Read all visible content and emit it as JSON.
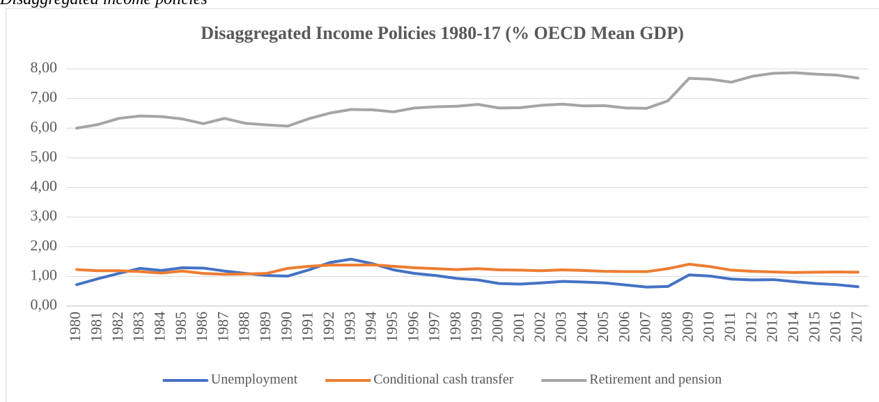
{
  "caption": "Disaggregated income policies",
  "chart_data": {
    "type": "line",
    "title": "Disaggregated Income Policies 1980-17 (% OECD Mean GDP)",
    "categories": [
      "1980",
      "1981",
      "1982",
      "1983",
      "1984",
      "1985",
      "1986",
      "1987",
      "1988",
      "1989",
      "1990",
      "1991",
      "1992",
      "1993",
      "1994",
      "1995",
      "1996",
      "1997",
      "1998",
      "1999",
      "2000",
      "2001",
      "2002",
      "2003",
      "2004",
      "2005",
      "2006",
      "2007",
      "2008",
      "2009",
      "2010",
      "2011",
      "2012",
      "2013",
      "2014",
      "2015",
      "2016",
      "2017"
    ],
    "series": [
      {
        "name": "Unemployment",
        "color": "#4472c4",
        "values": [
          0.72,
          0.92,
          1.1,
          1.27,
          1.2,
          1.29,
          1.28,
          1.18,
          1.1,
          1.03,
          1.01,
          1.22,
          1.47,
          1.58,
          1.43,
          1.22,
          1.1,
          1.03,
          0.93,
          0.88,
          0.76,
          0.74,
          0.78,
          0.83,
          0.81,
          0.78,
          0.71,
          0.64,
          0.66,
          1.05,
          1.01,
          0.91,
          0.88,
          0.89,
          0.82,
          0.76,
          0.72,
          0.65
        ]
      },
      {
        "name": "Conditional cash transfer",
        "color": "#ed7d31",
        "values": [
          1.23,
          1.19,
          1.19,
          1.16,
          1.11,
          1.18,
          1.1,
          1.07,
          1.08,
          1.1,
          1.27,
          1.34,
          1.38,
          1.38,
          1.39,
          1.34,
          1.29,
          1.26,
          1.23,
          1.26,
          1.22,
          1.21,
          1.19,
          1.22,
          1.2,
          1.17,
          1.16,
          1.16,
          1.26,
          1.41,
          1.33,
          1.21,
          1.17,
          1.15,
          1.13,
          1.14,
          1.15,
          1.14
        ]
      },
      {
        "name": "Retirement and pension",
        "color": "#a5a5a5",
        "values": [
          6.0,
          6.12,
          6.33,
          6.41,
          6.39,
          6.31,
          6.15,
          6.33,
          6.16,
          6.11,
          6.07,
          6.32,
          6.51,
          6.63,
          6.62,
          6.55,
          6.68,
          6.72,
          6.74,
          6.8,
          6.68,
          6.69,
          6.77,
          6.81,
          6.75,
          6.76,
          6.68,
          6.67,
          6.92,
          7.68,
          7.65,
          7.55,
          7.75,
          7.85,
          7.87,
          7.82,
          7.79,
          7.69
        ]
      }
    ],
    "ylim": [
      0,
      8
    ],
    "yticks": [
      {
        "value": 0,
        "label": "0,00"
      },
      {
        "value": 1,
        "label": "1,00"
      },
      {
        "value": 2,
        "label": "2,00"
      },
      {
        "value": 3,
        "label": "3,00"
      },
      {
        "value": 4,
        "label": "4,00"
      },
      {
        "value": 5,
        "label": "5,00"
      },
      {
        "value": 6,
        "label": "6,00"
      },
      {
        "value": 7,
        "label": "7,00"
      },
      {
        "value": 8,
        "label": "8,00"
      }
    ],
    "grid": true,
    "legend": "bottom"
  }
}
